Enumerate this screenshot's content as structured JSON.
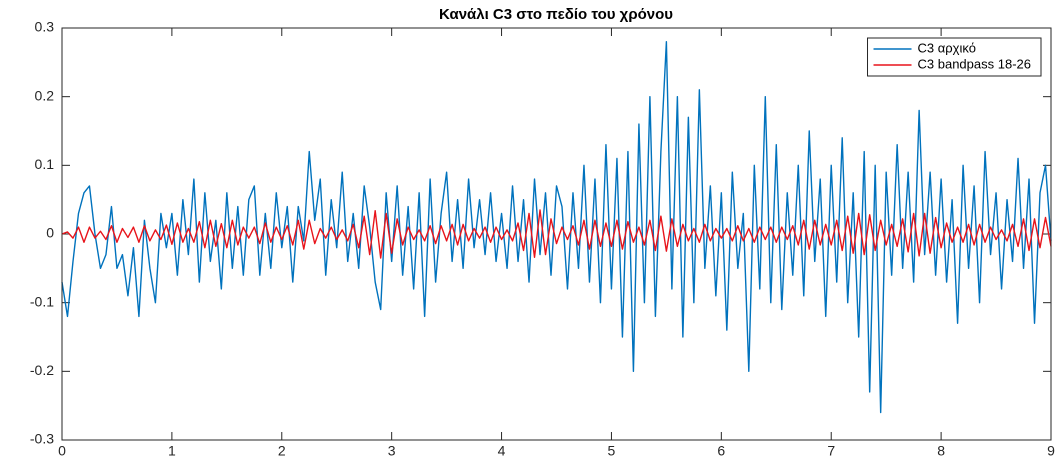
{
  "chart_data": {
    "type": "line",
    "title": "Κανάλι C3 στο πεδίο του χρόνου",
    "x": [
      0,
      0.05,
      0.1,
      0.15,
      0.2,
      0.25,
      0.3,
      0.35,
      0.4,
      0.45,
      0.5,
      0.55,
      0.6,
      0.65,
      0.7,
      0.75,
      0.8,
      0.85,
      0.9,
      0.95,
      1,
      1.05,
      1.1,
      1.15,
      1.2,
      1.25,
      1.3,
      1.35,
      1.4,
      1.45,
      1.5,
      1.55,
      1.6,
      1.65,
      1.7,
      1.75,
      1.8,
      1.85,
      1.9,
      1.95,
      2,
      2.05,
      2.1,
      2.15,
      2.2,
      2.25,
      2.3,
      2.35,
      2.4,
      2.45,
      2.5,
      2.55,
      2.6,
      2.65,
      2.7,
      2.75,
      2.8,
      2.85,
      2.9,
      2.95,
      3,
      3.05,
      3.1,
      3.15,
      3.2,
      3.25,
      3.3,
      3.35,
      3.4,
      3.45,
      3.5,
      3.55,
      3.6,
      3.65,
      3.7,
      3.75,
      3.8,
      3.85,
      3.9,
      3.95,
      4,
      4.05,
      4.1,
      4.15,
      4.2,
      4.25,
      4.3,
      4.35,
      4.4,
      4.45,
      4.5,
      4.55,
      4.6,
      4.65,
      4.7,
      4.75,
      4.8,
      4.85,
      4.9,
      4.95,
      5,
      5.05,
      5.1,
      5.15,
      5.2,
      5.25,
      5.3,
      5.35,
      5.4,
      5.45,
      5.5,
      5.55,
      5.6,
      5.65,
      5.7,
      5.75,
      5.8,
      5.85,
      5.9,
      5.95,
      6,
      6.05,
      6.1,
      6.15,
      6.2,
      6.25,
      6.3,
      6.35,
      6.4,
      6.45,
      6.5,
      6.55,
      6.6,
      6.65,
      6.7,
      6.75,
      6.8,
      6.85,
      6.9,
      6.95,
      7,
      7.05,
      7.1,
      7.15,
      7.2,
      7.25,
      7.3,
      7.35,
      7.4,
      7.45,
      7.5,
      7.55,
      7.6,
      7.65,
      7.7,
      7.75,
      7.8,
      7.85,
      7.9,
      7.95,
      8,
      8.05,
      8.1,
      8.15,
      8.2,
      8.25,
      8.3,
      8.35,
      8.4,
      8.45,
      8.5,
      8.55,
      8.6,
      8.65,
      8.7,
      8.75,
      8.8,
      8.85,
      8.9,
      8.95,
      9
    ],
    "series": [
      {
        "name": "C3 αρχικό",
        "color": "#0072bd",
        "values": [
          -0.07,
          -0.12,
          -0.04,
          0.03,
          0.06,
          0.07,
          0.0,
          -0.05,
          -0.03,
          0.04,
          -0.05,
          -0.03,
          -0.09,
          -0.02,
          -0.12,
          0.02,
          -0.05,
          -0.1,
          0.03,
          -0.02,
          0.03,
          -0.06,
          0.05,
          -0.03,
          0.08,
          -0.07,
          0.06,
          -0.04,
          0.02,
          -0.08,
          0.06,
          -0.05,
          0.04,
          -0.06,
          0.05,
          0.07,
          -0.06,
          0.03,
          -0.05,
          0.06,
          -0.02,
          0.04,
          -0.07,
          0.04,
          -0.01,
          0.12,
          0.02,
          0.08,
          -0.06,
          0.05,
          -0.02,
          0.09,
          -0.04,
          0.03,
          -0.05,
          0.07,
          0.01,
          -0.07,
          -0.11,
          0.06,
          -0.04,
          0.07,
          -0.06,
          0.04,
          -0.08,
          0.06,
          -0.12,
          0.08,
          -0.07,
          0.03,
          0.09,
          -0.04,
          0.05,
          -0.05,
          0.08,
          -0.02,
          0.05,
          -0.03,
          0.06,
          -0.04,
          0.03,
          -0.05,
          0.07,
          -0.04,
          0.05,
          -0.07,
          0.08,
          -0.03,
          0.06,
          -0.06,
          0.07,
          0.04,
          -0.08,
          0.06,
          -0.05,
          0.1,
          -0.07,
          0.08,
          -0.1,
          0.13,
          -0.08,
          0.11,
          -0.15,
          0.12,
          -0.2,
          0.16,
          -0.1,
          0.2,
          -0.12,
          0.12,
          0.28,
          -0.08,
          0.2,
          -0.15,
          0.17,
          -0.1,
          0.21,
          -0.05,
          0.07,
          -0.09,
          0.06,
          -0.14,
          0.09,
          -0.05,
          0.03,
          -0.2,
          0.1,
          -0.08,
          0.2,
          -0.1,
          0.13,
          -0.11,
          0.06,
          -0.06,
          0.1,
          -0.09,
          0.15,
          -0.04,
          0.08,
          -0.12,
          0.1,
          -0.07,
          0.14,
          -0.1,
          0.06,
          -0.15,
          0.12,
          -0.23,
          0.1,
          -0.26,
          0.09,
          -0.06,
          0.13,
          -0.05,
          0.09,
          -0.07,
          0.18,
          -0.03,
          0.09,
          -0.06,
          0.08,
          -0.07,
          0.05,
          -0.13,
          0.1,
          -0.05,
          0.07,
          -0.1,
          0.12,
          -0.03,
          0.06,
          -0.08,
          0.05,
          -0.04,
          0.11,
          -0.05,
          0.08,
          -0.13,
          0.06,
          0.1,
          -0.01
        ]
      },
      {
        "name": "C3 bandpass 18-26",
        "color": "#e8141b",
        "values": [
          0,
          0.003,
          -0.006,
          0.01,
          -0.012,
          0.01,
          -0.006,
          0.004,
          -0.008,
          0.012,
          -0.012,
          0.008,
          -0.005,
          0.01,
          -0.012,
          0.012,
          -0.01,
          0.006,
          -0.008,
          0.013,
          -0.015,
          0.016,
          -0.012,
          0.008,
          -0.012,
          0.018,
          -0.02,
          0.02,
          -0.018,
          0.015,
          -0.02,
          0.02,
          -0.016,
          0.01,
          -0.006,
          0.01,
          -0.014,
          0.016,
          -0.012,
          0.01,
          -0.008,
          0.012,
          -0.016,
          0.02,
          -0.022,
          0.02,
          -0.014,
          0.008,
          -0.006,
          0.01,
          -0.008,
          0.006,
          -0.01,
          0.014,
          -0.02,
          0.026,
          -0.03,
          0.034,
          -0.035,
          0.03,
          -0.028,
          0.022,
          -0.016,
          0.01,
          -0.008,
          0.006,
          -0.01,
          0.012,
          -0.014,
          0.012,
          -0.01,
          0.014,
          -0.016,
          0.014,
          -0.01,
          0.008,
          -0.006,
          0.01,
          -0.012,
          0.01,
          -0.008,
          0.006,
          -0.01,
          0.016,
          -0.024,
          0.03,
          -0.034,
          0.035,
          -0.03,
          0.022,
          -0.014,
          0.01,
          -0.008,
          0.012,
          -0.016,
          0.02,
          -0.022,
          0.02,
          -0.018,
          0.016,
          -0.018,
          0.02,
          -0.022,
          0.018,
          -0.012,
          0.01,
          -0.016,
          0.02,
          -0.024,
          0.026,
          -0.025,
          0.022,
          -0.018,
          0.014,
          -0.01,
          0.008,
          -0.012,
          0.014,
          -0.01,
          0.008,
          -0.006,
          0.008,
          -0.01,
          0.012,
          -0.01,
          0.008,
          -0.012,
          0.01,
          -0.008,
          0.01,
          -0.012,
          0.01,
          -0.008,
          0.012,
          -0.016,
          0.02,
          -0.022,
          0.02,
          -0.016,
          0.014,
          -0.016,
          0.02,
          -0.024,
          0.026,
          -0.028,
          0.03,
          -0.03,
          0.028,
          -0.024,
          0.02,
          -0.016,
          0.014,
          -0.018,
          0.022,
          -0.026,
          0.03,
          -0.032,
          0.03,
          -0.028,
          0.024,
          -0.02,
          0.016,
          -0.012,
          0.01,
          -0.012,
          0.014,
          -0.016,
          0.014,
          -0.012,
          0.01,
          -0.008,
          0.006,
          -0.01,
          0.014,
          -0.018,
          0.022,
          -0.024,
          0.022,
          -0.02,
          0.024,
          -0.018
        ]
      }
    ],
    "xlim": [
      0,
      9
    ],
    "xticks": [
      0,
      1,
      2,
      3,
      4,
      5,
      6,
      7,
      8,
      9
    ],
    "ylim": [
      -0.3,
      0.3
    ],
    "yticks": [
      -0.3,
      -0.2,
      -0.1,
      0,
      0.1,
      0.2,
      0.3
    ],
    "grid": false,
    "legend": "northeast"
  }
}
